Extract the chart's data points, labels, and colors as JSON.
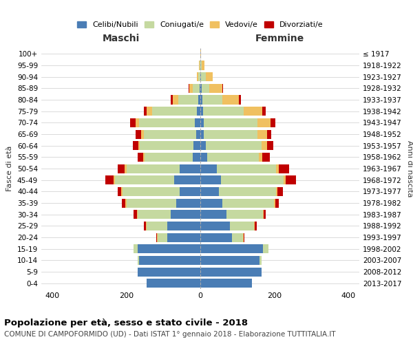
{
  "age_groups": [
    "0-4",
    "5-9",
    "10-14",
    "15-19",
    "20-24",
    "25-29",
    "30-34",
    "35-39",
    "40-44",
    "45-49",
    "50-54",
    "55-59",
    "60-64",
    "65-69",
    "70-74",
    "75-79",
    "80-84",
    "85-89",
    "90-94",
    "95-99",
    "100+"
  ],
  "birth_years": [
    "2013-2017",
    "2008-2012",
    "2003-2007",
    "1998-2002",
    "1993-1997",
    "1988-1992",
    "1983-1987",
    "1978-1982",
    "1973-1977",
    "1968-1972",
    "1963-1967",
    "1958-1962",
    "1953-1957",
    "1948-1952",
    "1943-1947",
    "1938-1942",
    "1933-1937",
    "1928-1932",
    "1923-1927",
    "1918-1922",
    "≤ 1917"
  ],
  "males": {
    "celibi": [
      145,
      170,
      165,
      170,
      90,
      90,
      80,
      65,
      55,
      70,
      55,
      20,
      18,
      12,
      15,
      10,
      5,
      2,
      0,
      0,
      0
    ],
    "coniugati": [
      0,
      0,
      5,
      10,
      25,
      55,
      90,
      135,
      155,
      160,
      145,
      130,
      145,
      140,
      150,
      120,
      55,
      18,
      5,
      2,
      0
    ],
    "vedovi": [
      0,
      0,
      0,
      0,
      2,
      2,
      2,
      2,
      4,
      4,
      4,
      4,
      5,
      8,
      10,
      15,
      15,
      10,
      5,
      2,
      0
    ],
    "divorziati": [
      0,
      0,
      0,
      0,
      2,
      5,
      8,
      10,
      10,
      22,
      20,
      15,
      15,
      15,
      15,
      8,
      5,
      2,
      0,
      0,
      0
    ]
  },
  "females": {
    "nubili": [
      140,
      165,
      160,
      170,
      85,
      80,
      70,
      60,
      50,
      55,
      45,
      18,
      15,
      10,
      10,
      8,
      5,
      3,
      2,
      0,
      0
    ],
    "coniugate": [
      0,
      0,
      5,
      15,
      30,
      65,
      100,
      140,
      155,
      170,
      160,
      140,
      150,
      145,
      145,
      110,
      55,
      22,
      12,
      4,
      0
    ],
    "vedove": [
      0,
      0,
      0,
      0,
      2,
      2,
      2,
      2,
      4,
      5,
      8,
      10,
      15,
      25,
      35,
      50,
      45,
      35,
      20,
      8,
      2
    ],
    "divorziate": [
      0,
      0,
      0,
      0,
      2,
      5,
      5,
      10,
      15,
      28,
      28,
      20,
      18,
      12,
      12,
      8,
      5,
      2,
      0,
      0,
      0
    ]
  },
  "colors": {
    "celibi": "#4a7db5",
    "coniugati": "#c5d9a0",
    "vedovi": "#f0c060",
    "divorziati": "#c00000"
  },
  "title1": "Popolazione per età, sesso e stato civile - 2018",
  "title2": "COMUNE DI CAMPOFORMIDO (UD) - Dati ISTAT 1° gennaio 2018 - Elaborazione TUTTITALIA.IT",
  "xlabel_left": "Maschi",
  "xlabel_right": "Femmine",
  "ylabel": "Fasce di età",
  "ylabel_right": "Anni di nascita",
  "xlim": 430,
  "bg_color": "#ffffff",
  "grid_color": "#cccccc",
  "legend_labels": [
    "Celibi/Nubili",
    "Coniugati/e",
    "Vedovi/e",
    "Divorziati/e"
  ]
}
